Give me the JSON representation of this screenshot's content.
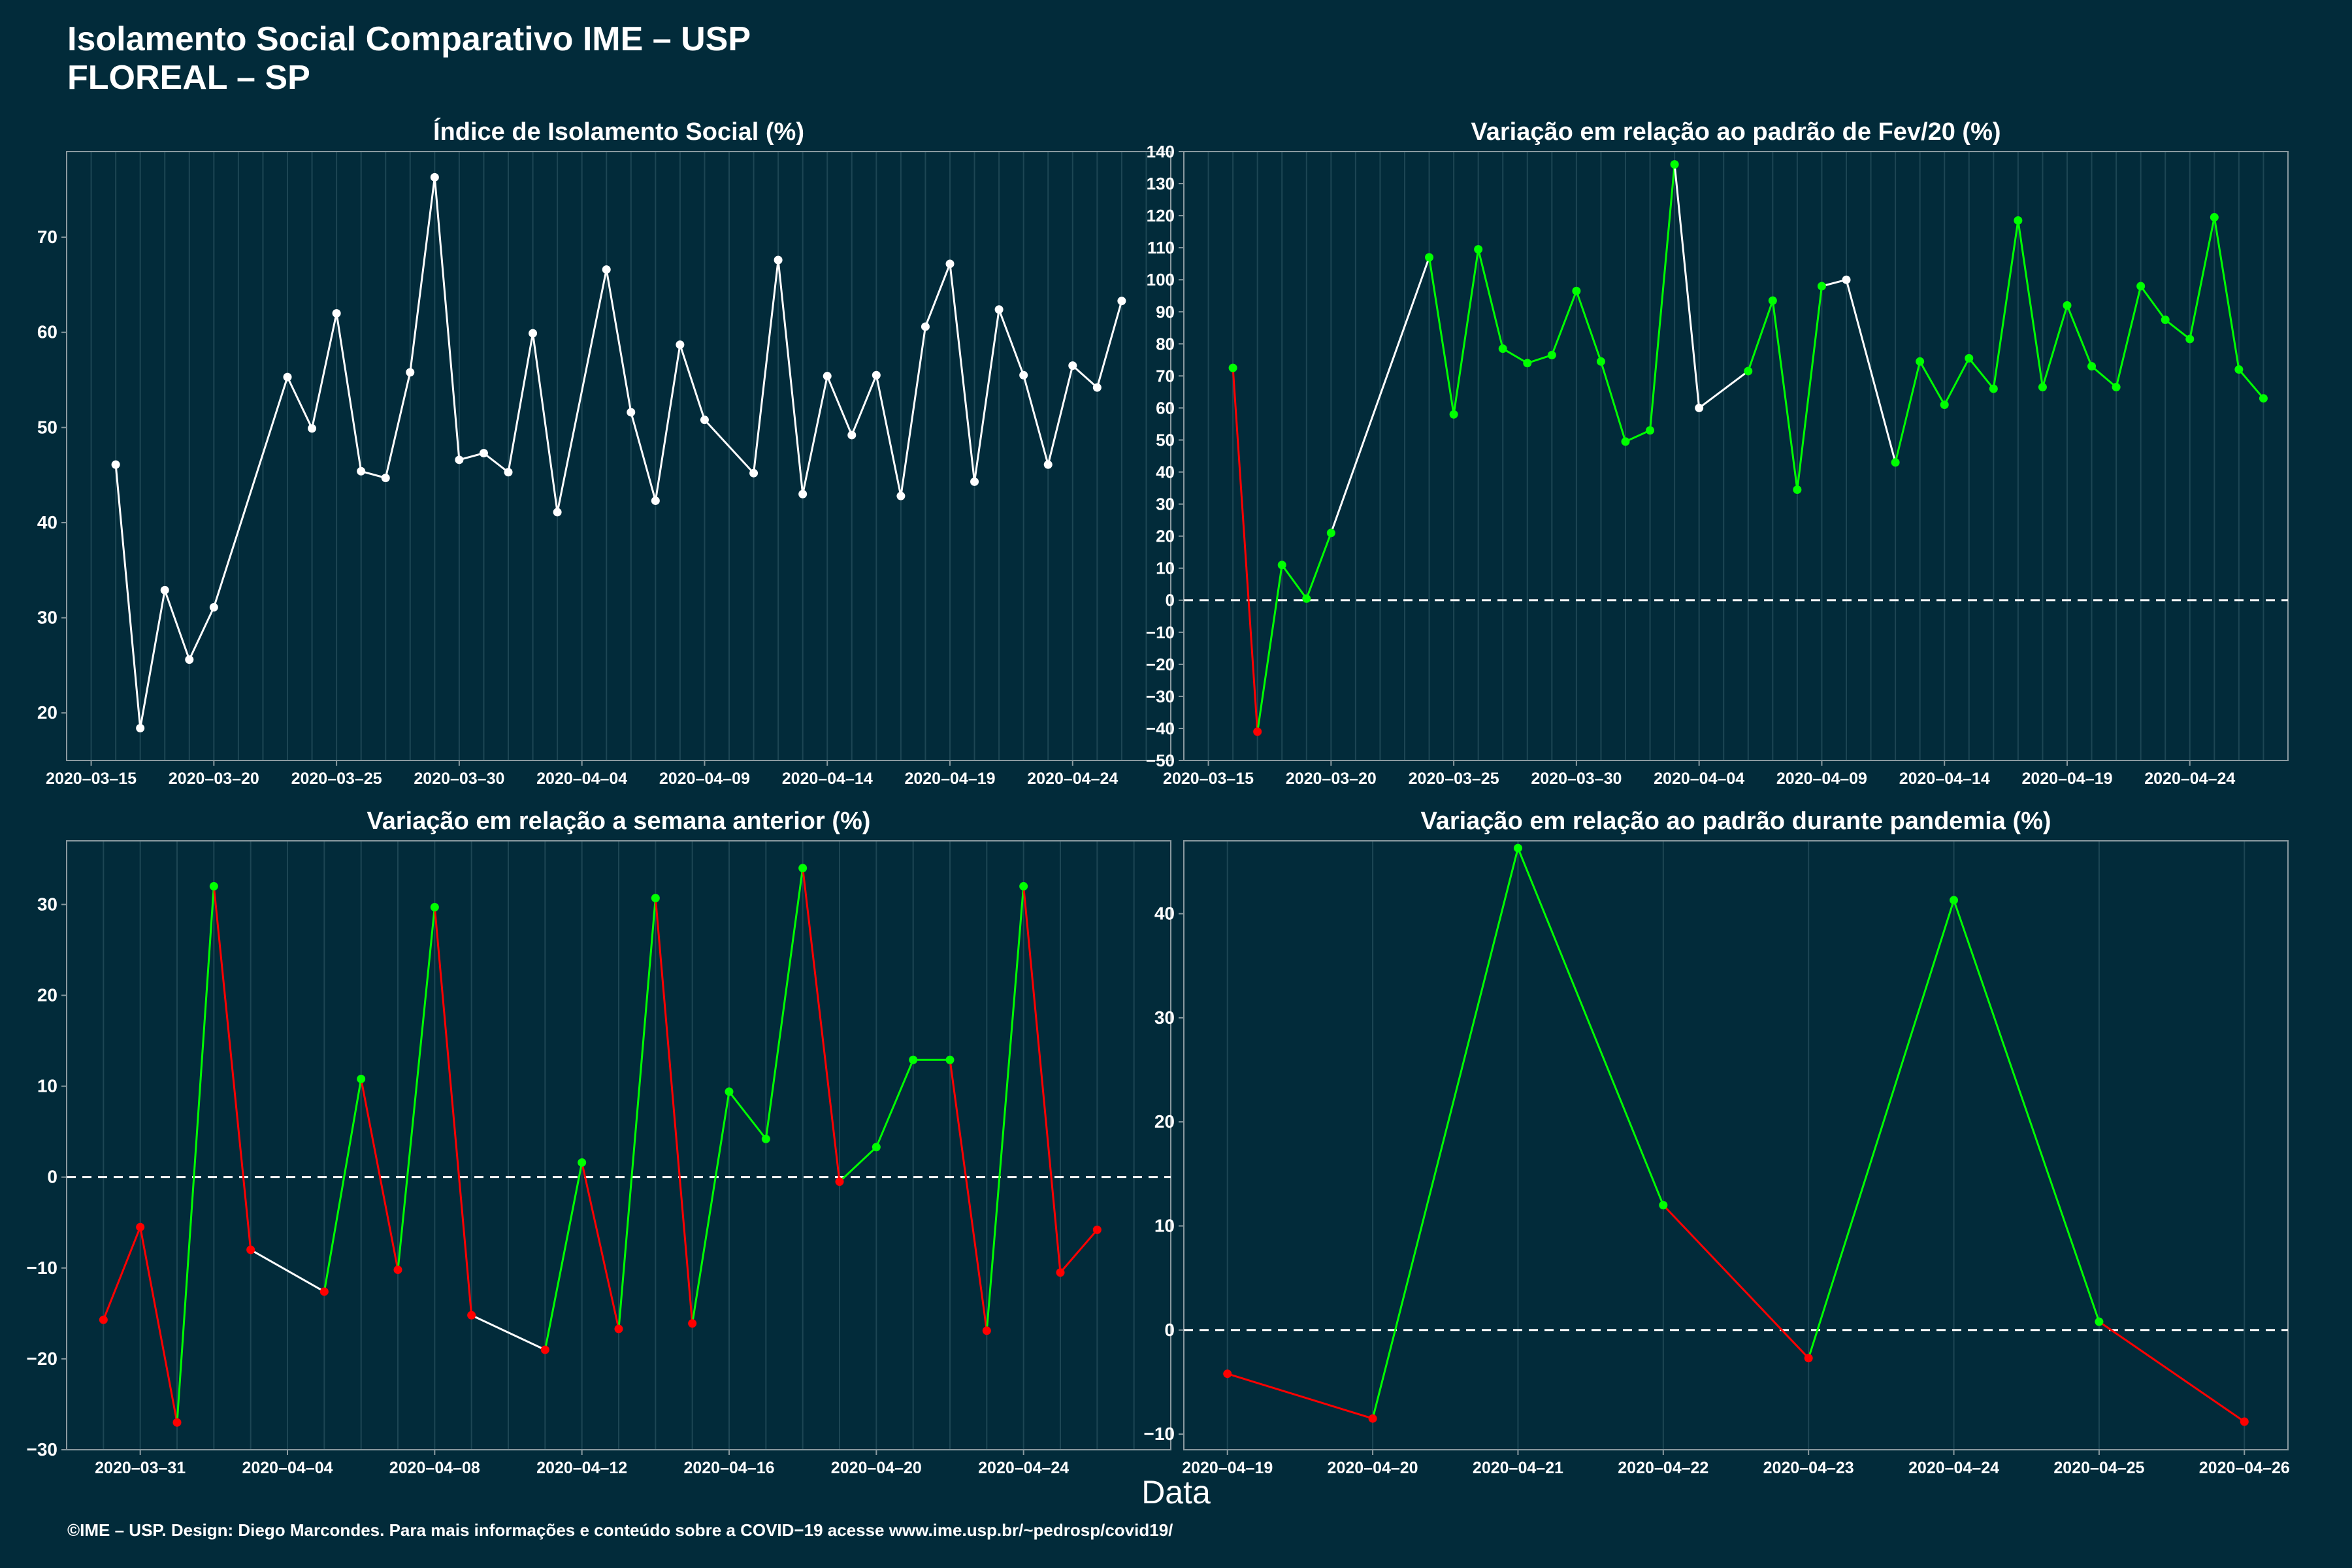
{
  "header": {
    "title_line1": "Isolamento Social Comparativo IME – USP",
    "title_line2": "FLOREAL – SP"
  },
  "x_axis_label": "Data",
  "footer": "©IME – USP. Design: Diego Marcondes. Para mais informações e conteúdo sobre a COVID−19 acesse www.ime.usp.br/~pedrosp/covid19/",
  "colors": {
    "background": "#022b3a",
    "line_default": "#ffffff",
    "increase": "#00ff00",
    "decrease": "#ff0000",
    "grid": "#1d4654",
    "axis": "#8a9aa0"
  },
  "chart_data": [
    {
      "type": "line",
      "title": "Índice de Isolamento Social (%)",
      "x_type": "date",
      "xlim": [
        "2020-03-14",
        "2020-04-28"
      ],
      "ylim": [
        15,
        79
      ],
      "yticks": [
        20,
        30,
        40,
        50,
        60,
        70
      ],
      "xticks": [
        "2020-03-15",
        "2020-03-20",
        "2020-03-25",
        "2020-03-30",
        "2020-04-04",
        "2020-04-09",
        "2020-04-14",
        "2020-04-19",
        "2020-04-24"
      ],
      "grid": true,
      "series": [
        {
          "color": "#ffffff",
          "x": [
            "2020-03-16",
            "2020-03-17",
            "2020-03-18",
            "2020-03-19",
            "2020-03-20",
            "2020-03-23",
            "2020-03-24",
            "2020-03-25",
            "2020-03-26",
            "2020-03-27",
            "2020-03-28",
            "2020-03-29",
            "2020-03-30",
            "2020-03-31",
            "2020-04-01",
            "2020-04-02",
            "2020-04-03",
            "2020-04-05",
            "2020-04-06",
            "2020-04-07",
            "2020-04-08",
            "2020-04-09",
            "2020-04-11",
            "2020-04-12",
            "2020-04-13",
            "2020-04-14",
            "2020-04-15",
            "2020-04-16",
            "2020-04-17",
            "2020-04-18",
            "2020-04-19",
            "2020-04-20",
            "2020-04-21",
            "2020-04-22",
            "2020-04-23",
            "2020-04-24",
            "2020-04-25",
            "2020-04-26"
          ],
          "y": [
            46.1,
            18.4,
            32.9,
            25.6,
            31.1,
            55.3,
            49.9,
            62.0,
            45.4,
            44.7,
            55.8,
            76.3,
            46.6,
            47.3,
            45.3,
            59.9,
            41.1,
            66.6,
            51.6,
            42.3,
            58.7,
            50.8,
            45.2,
            67.6,
            43.0,
            55.4,
            49.2,
            55.5,
            42.8,
            60.6,
            67.2,
            44.3,
            62.4,
            55.5,
            46.1,
            56.5,
            54.2,
            63.3
          ]
        }
      ]
    },
    {
      "type": "line",
      "title": "Variação em relação ao padrão de Fev/20 (%)",
      "x_type": "date",
      "xlim": [
        "2020-03-14",
        "2020-04-28"
      ],
      "ylim": [
        -50,
        140
      ],
      "yticks": [
        -50,
        -40,
        -30,
        -20,
        -10,
        0,
        10,
        20,
        30,
        40,
        50,
        60,
        70,
        80,
        90,
        100,
        110,
        120,
        130,
        140
      ],
      "xticks": [
        "2020-03-15",
        "2020-03-20",
        "2020-03-25",
        "2020-03-30",
        "2020-04-04",
        "2020-04-09",
        "2020-04-14",
        "2020-04-19",
        "2020-04-24"
      ],
      "reference_line": 0,
      "grid": true,
      "series": [
        {
          "colored_by_change": true,
          "x": [
            "2020-03-16",
            "2020-03-17",
            "2020-03-18",
            "2020-03-19",
            "2020-03-20",
            "2020-03-24",
            "2020-03-25",
            "2020-03-26",
            "2020-03-27",
            "2020-03-28",
            "2020-03-29",
            "2020-03-30",
            "2020-03-31",
            "2020-04-01",
            "2020-04-02",
            "2020-04-03",
            "2020-04-04",
            "2020-04-06",
            "2020-04-07",
            "2020-04-08",
            "2020-04-09",
            "2020-04-10",
            "2020-04-12",
            "2020-04-13",
            "2020-04-14",
            "2020-04-15",
            "2020-04-16",
            "2020-04-17",
            "2020-04-18",
            "2020-04-19",
            "2020-04-20",
            "2020-04-21",
            "2020-04-22",
            "2020-04-23",
            "2020-04-24",
            "2020-04-25",
            "2020-04-26",
            "2020-04-27"
          ],
          "y": [
            72.5,
            -41.0,
            11.0,
            0.5,
            21.0,
            107.0,
            58.0,
            109.5,
            78.5,
            74.0,
            76.5,
            96.5,
            74.5,
            49.5,
            53.0,
            136.0,
            60.0,
            71.5,
            93.5,
            34.5,
            98.0,
            100.0,
            43.0,
            74.5,
            61.0,
            75.5,
            66.0,
            118.5,
            66.5,
            92.0,
            73.0,
            66.5,
            98.0,
            87.5,
            81.5,
            119.5,
            72.0,
            63.0
          ],
          "segment_colors": [
            "#ff0000",
            "#00ff00",
            "#00ff00",
            "#00ff00",
            "#ffffff",
            "#00ff00",
            "#00ff00",
            "#00ff00",
            "#00ff00",
            "#00ff00",
            "#00ff00",
            "#00ff00",
            "#00ff00",
            "#00ff00",
            "#00ff00",
            "#ffffff",
            "#ffffff",
            "#00ff00",
            "#00ff00",
            "#00ff00",
            "#ffffff",
            "#ffffff",
            "#00ff00",
            "#00ff00",
            "#00ff00",
            "#00ff00",
            "#00ff00",
            "#00ff00",
            "#00ff00",
            "#00ff00",
            "#00ff00",
            "#00ff00",
            "#00ff00",
            "#00ff00",
            "#00ff00",
            "#00ff00",
            "#00ff00"
          ],
          "point_colors": [
            "#00ff00",
            "#ff0000",
            "#00ff00",
            "#00ff00",
            "#00ff00",
            "#00ff00",
            "#00ff00",
            "#00ff00",
            "#00ff00",
            "#00ff00",
            "#00ff00",
            "#00ff00",
            "#00ff00",
            "#00ff00",
            "#00ff00",
            "#00ff00",
            "#ffffff",
            "#00ff00",
            "#00ff00",
            "#00ff00",
            "#00ff00",
            "#ffffff",
            "#00ff00",
            "#00ff00",
            "#00ff00",
            "#00ff00",
            "#00ff00",
            "#00ff00",
            "#00ff00",
            "#00ff00",
            "#00ff00",
            "#00ff00",
            "#00ff00",
            "#00ff00",
            "#00ff00",
            "#00ff00",
            "#00ff00",
            "#00ff00"
          ]
        }
      ]
    },
    {
      "type": "line",
      "title": "Variação em relação a semana anterior (%)",
      "x_type": "date",
      "xlim": [
        "2020-03-29",
        "2020-04-28"
      ],
      "ylim": [
        -30,
        37
      ],
      "yticks": [
        -30,
        -20,
        -10,
        0,
        10,
        20,
        30
      ],
      "xticks": [
        "2020-03-31",
        "2020-04-04",
        "2020-04-08",
        "2020-04-12",
        "2020-04-16",
        "2020-04-20",
        "2020-04-24"
      ],
      "reference_line": 0,
      "grid": true,
      "series": [
        {
          "colored_by_change": true,
          "x": [
            "2020-03-30",
            "2020-03-31",
            "2020-04-01",
            "2020-04-02",
            "2020-04-03",
            "2020-04-05",
            "2020-04-06",
            "2020-04-07",
            "2020-04-08",
            "2020-04-09",
            "2020-04-11",
            "2020-04-12",
            "2020-04-13",
            "2020-04-14",
            "2020-04-15",
            "2020-04-16",
            "2020-04-17",
            "2020-04-18",
            "2020-04-19",
            "2020-04-20",
            "2020-04-21",
            "2020-04-22",
            "2020-04-23",
            "2020-04-24",
            "2020-04-25",
            "2020-04-26"
          ],
          "y": [
            -15.7,
            -5.5,
            -27.0,
            32.0,
            -8.0,
            -12.6,
            10.8,
            -10.2,
            29.7,
            -15.2,
            -19.0,
            1.6,
            -16.7,
            30.7,
            -16.1,
            9.4,
            4.2,
            34.0,
            -0.5,
            3.3,
            12.9,
            12.9,
            -16.9,
            32.0,
            -10.5,
            -5.8
          ],
          "segment_colors": [
            "#ff0000",
            "#ff0000",
            "#00ff00",
            "#ff0000",
            "#ffffff",
            "#00ff00",
            "#ff0000",
            "#00ff00",
            "#ff0000",
            "#ffffff",
            "#00ff00",
            "#ff0000",
            "#00ff00",
            "#ff0000",
            "#00ff00",
            "#00ff00",
            "#00ff00",
            "#ff0000",
            "#00ff00",
            "#00ff00",
            "#00ff00",
            "#ff0000",
            "#00ff00",
            "#ff0000",
            "#ff0000"
          ],
          "point_colors": [
            "#ff0000",
            "#ff0000",
            "#ff0000",
            "#00ff00",
            "#ff0000",
            "#ff0000",
            "#00ff00",
            "#ff0000",
            "#00ff00",
            "#ff0000",
            "#ff0000",
            "#00ff00",
            "#ff0000",
            "#00ff00",
            "#ff0000",
            "#00ff00",
            "#00ff00",
            "#00ff00",
            "#ff0000",
            "#00ff00",
            "#00ff00",
            "#00ff00",
            "#ff0000",
            "#00ff00",
            "#ff0000",
            "#ff0000"
          ]
        }
      ]
    },
    {
      "type": "line",
      "title": "Variação em relação ao padrão durante pandemia (%)",
      "x_type": "date",
      "xlim": [
        "2020-04-18.7",
        "2020-04-26.3"
      ],
      "ylim": [
        -11.5,
        47
      ],
      "yticks": [
        -10,
        0,
        10,
        20,
        30,
        40
      ],
      "xticks": [
        "2020-04-19",
        "2020-04-20",
        "2020-04-21",
        "2020-04-22",
        "2020-04-23",
        "2020-04-24",
        "2020-04-25",
        "2020-04-26"
      ],
      "reference_line": 0,
      "grid": true,
      "series": [
        {
          "colored_by_change": true,
          "x": [
            "2020-04-19",
            "2020-04-20",
            "2020-04-21",
            "2020-04-22",
            "2020-04-23",
            "2020-04-24",
            "2020-04-25",
            "2020-04-26"
          ],
          "y": [
            -4.2,
            -8.5,
            46.3,
            12.0,
            -2.7,
            41.3,
            0.8,
            -8.8
          ],
          "segment_colors": [
            "#ff0000",
            "#00ff00",
            "#00ff00",
            "#ff0000",
            "#00ff00",
            "#00ff00",
            "#ff0000"
          ],
          "point_colors": [
            "#ff0000",
            "#ff0000",
            "#00ff00",
            "#00ff00",
            "#ff0000",
            "#00ff00",
            "#00ff00",
            "#ff0000"
          ]
        }
      ]
    }
  ]
}
